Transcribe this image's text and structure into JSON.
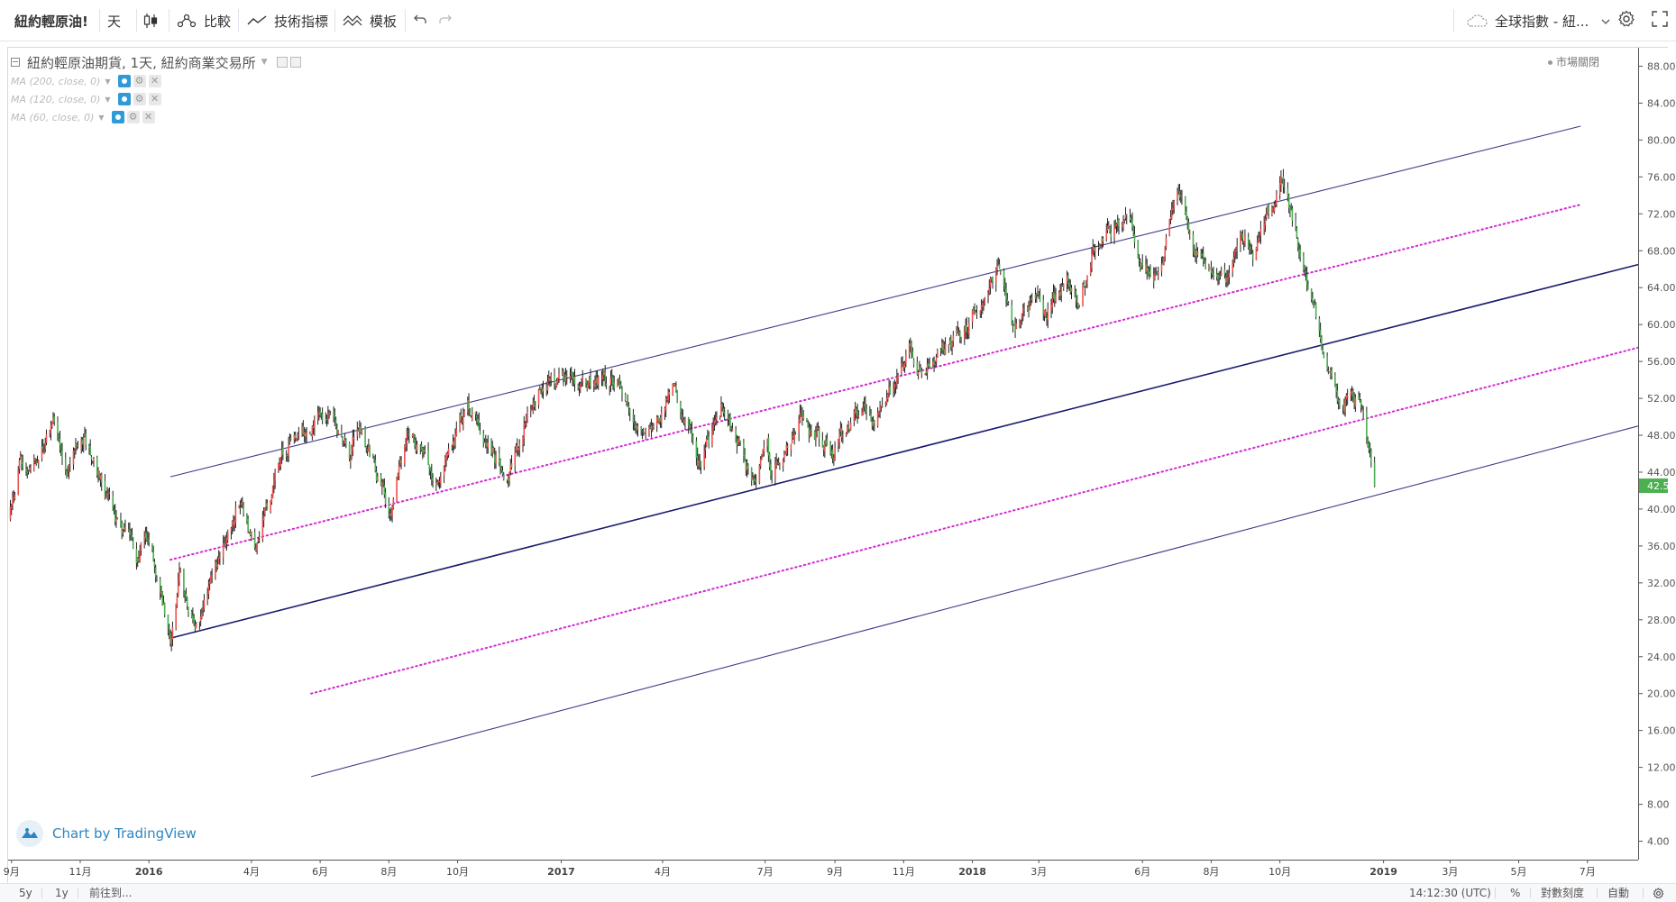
{
  "toolbar": {
    "symbol": "紐約輕原油!",
    "interval": "天",
    "compare_label": "比較",
    "indicators_label": "技術指標",
    "templates_label": "模板",
    "watchlist_label": "全球指數 - 紐..."
  },
  "legend": {
    "title": "紐約輕原油期貨, 1天, 紐約商業交易所",
    "indicators": [
      "MA (200, close, 0)",
      "MA (120, close, 0)",
      "MA (60, close, 0)"
    ],
    "market_status": "市場關閉"
  },
  "watermark": "Chart by TradingView",
  "bottom_bar": {
    "ranges": [
      "5y",
      "1y"
    ],
    "goto_label": "前往到...",
    "time": "14:12:30 (UTC)",
    "percent": "%",
    "log": "對數刻度",
    "auto": "自動"
  },
  "colors": {
    "up": "#ef5350",
    "down": "#4caf50",
    "wick": "#222222",
    "channel_line": "#3c3c8c",
    "mid_line": "#1a1a6e",
    "dotted": "#d22bd2",
    "last_price_bg": "#4caf50",
    "watermark": "#2e86c1"
  },
  "chart_data": {
    "type": "candlestick",
    "ylim": [
      2,
      90
    ],
    "y_ticks": [
      4,
      8,
      12,
      16,
      20,
      24,
      28,
      32,
      36,
      40,
      44,
      48,
      52,
      56,
      60,
      64,
      68,
      72,
      76,
      80,
      84,
      88
    ],
    "y_tick_labels": [
      "4.00",
      "8.00",
      "12.00",
      "16.00",
      "20.00",
      "24.00",
      "28.00",
      "32.00",
      "36.00",
      "40.00",
      "44.00",
      "48.00",
      "52.00",
      "56.00",
      "60.00",
      "64.00",
      "68.00",
      "72.00",
      "76.00",
      "80.00",
      "84.00",
      "88.00"
    ],
    "x_domain": [
      "2015-08-29",
      "2019-08-15"
    ],
    "x_ticks": [
      {
        "date": "2015-09-01",
        "label": "9月"
      },
      {
        "date": "2015-11-01",
        "label": "11月"
      },
      {
        "date": "2016-01-01",
        "label": "2016",
        "bold": true
      },
      {
        "date": "2016-04-01",
        "label": "4月"
      },
      {
        "date": "2016-06-01",
        "label": "6月"
      },
      {
        "date": "2016-08-01",
        "label": "8月"
      },
      {
        "date": "2016-10-01",
        "label": "10月"
      },
      {
        "date": "2017-01-01",
        "label": "2017",
        "bold": true
      },
      {
        "date": "2017-04-01",
        "label": "4月"
      },
      {
        "date": "2017-07-01",
        "label": "7月"
      },
      {
        "date": "2017-09-01",
        "label": "9月"
      },
      {
        "date": "2017-11-01",
        "label": "11月"
      },
      {
        "date": "2018-01-01",
        "label": "2018",
        "bold": true
      },
      {
        "date": "2018-03-01",
        "label": "3月"
      },
      {
        "date": "2018-06-01",
        "label": "6月"
      },
      {
        "date": "2018-08-01",
        "label": "8月"
      },
      {
        "date": "2018-10-01",
        "label": "10月"
      },
      {
        "date": "2019-01-01",
        "label": "2019",
        "bold": true
      },
      {
        "date": "2019-03-01",
        "label": "3月"
      },
      {
        "date": "2019-05-01",
        "label": "5月"
      },
      {
        "date": "2019-07-01",
        "label": "7月"
      }
    ],
    "last_price": 42.53,
    "price_path": [
      {
        "date": "2015-08-29",
        "price": 39
      },
      {
        "date": "2015-09-08",
        "price": 45
      },
      {
        "date": "2015-09-25",
        "price": 45.5
      },
      {
        "date": "2015-10-08",
        "price": 49.5
      },
      {
        "date": "2015-10-20",
        "price": 45
      },
      {
        "date": "2015-11-04",
        "price": 47.5
      },
      {
        "date": "2015-11-25",
        "price": 41
      },
      {
        "date": "2015-12-21",
        "price": 34.5
      },
      {
        "date": "2015-12-31",
        "price": 37
      },
      {
        "date": "2016-01-20",
        "price": 26.5
      },
      {
        "date": "2016-01-28",
        "price": 33.5
      },
      {
        "date": "2016-02-11",
        "price": 26.5
      },
      {
        "date": "2016-03-08",
        "price": 36
      },
      {
        "date": "2016-03-22",
        "price": 41
      },
      {
        "date": "2016-04-05",
        "price": 35.5
      },
      {
        "date": "2016-04-29",
        "price": 46
      },
      {
        "date": "2016-05-26",
        "price": 49.5
      },
      {
        "date": "2016-06-08",
        "price": 51
      },
      {
        "date": "2016-06-27",
        "price": 46
      },
      {
        "date": "2016-07-05",
        "price": 49
      },
      {
        "date": "2016-08-02",
        "price": 40
      },
      {
        "date": "2016-08-18",
        "price": 48.5
      },
      {
        "date": "2016-09-15",
        "price": 43
      },
      {
        "date": "2016-10-10",
        "price": 51.5
      },
      {
        "date": "2016-11-14",
        "price": 43
      },
      {
        "date": "2016-11-30",
        "price": 49.5
      },
      {
        "date": "2016-12-12",
        "price": 53
      },
      {
        "date": "2017-01-05",
        "price": 54
      },
      {
        "date": "2017-02-20",
        "price": 54
      },
      {
        "date": "2017-03-14",
        "price": 47.5
      },
      {
        "date": "2017-04-11",
        "price": 53
      },
      {
        "date": "2017-05-04",
        "price": 44.5
      },
      {
        "date": "2017-05-24",
        "price": 51.5
      },
      {
        "date": "2017-06-21",
        "price": 42.5
      },
      {
        "date": "2017-07-03",
        "price": 47
      },
      {
        "date": "2017-07-07",
        "price": 44
      },
      {
        "date": "2017-08-01",
        "price": 50
      },
      {
        "date": "2017-08-30",
        "price": 46
      },
      {
        "date": "2017-09-26",
        "price": 52
      },
      {
        "date": "2017-10-06",
        "price": 49.5
      },
      {
        "date": "2017-11-07",
        "price": 57.5
      },
      {
        "date": "2017-11-15",
        "price": 55.5
      },
      {
        "date": "2017-12-26",
        "price": 59.5
      },
      {
        "date": "2018-01-25",
        "price": 66
      },
      {
        "date": "2018-02-08",
        "price": 59
      },
      {
        "date": "2018-02-26",
        "price": 63.5
      },
      {
        "date": "2018-03-08",
        "price": 61
      },
      {
        "date": "2018-03-26",
        "price": 65.5
      },
      {
        "date": "2018-04-05",
        "price": 62
      },
      {
        "date": "2018-04-18",
        "price": 68.5
      },
      {
        "date": "2018-05-21",
        "price": 72
      },
      {
        "date": "2018-05-30",
        "price": 66.5
      },
      {
        "date": "2018-06-15",
        "price": 65
      },
      {
        "date": "2018-07-03",
        "price": 74.5
      },
      {
        "date": "2018-07-17",
        "price": 68
      },
      {
        "date": "2018-08-16",
        "price": 65
      },
      {
        "date": "2018-08-31",
        "price": 70
      },
      {
        "date": "2018-09-07",
        "price": 67.5
      },
      {
        "date": "2018-10-03",
        "price": 76
      },
      {
        "date": "2018-10-23",
        "price": 66
      },
      {
        "date": "2018-11-13",
        "price": 55
      },
      {
        "date": "2018-11-23",
        "price": 50.5
      },
      {
        "date": "2018-12-03",
        "price": 53
      },
      {
        "date": "2018-12-10",
        "price": 51
      },
      {
        "date": "2018-12-14",
        "price": 51.2
      },
      {
        "date": "2018-12-24",
        "price": 42.53
      }
    ],
    "channel_lines": [
      {
        "style": "solid",
        "from": {
          "date": "2016-01-20",
          "price": 43.5
        },
        "to": {
          "date": "2019-06-25",
          "price": 81.5
        }
      },
      {
        "style": "dotted",
        "from": {
          "date": "2016-01-20",
          "price": 34.5
        },
        "to": {
          "date": "2019-06-25",
          "price": 73
        }
      },
      {
        "style": "solid-bold",
        "from": {
          "date": "2016-01-20",
          "price": 26
        },
        "to": {
          "date": "2019-08-15",
          "price": 66.5
        }
      },
      {
        "style": "dotted",
        "from": {
          "date": "2016-05-24",
          "price": 20
        },
        "to": {
          "date": "2019-08-15",
          "price": 57.5
        }
      },
      {
        "style": "solid",
        "from": {
          "date": "2016-05-24",
          "price": 11
        },
        "to": {
          "date": "2019-08-15",
          "price": 49
        }
      }
    ]
  }
}
